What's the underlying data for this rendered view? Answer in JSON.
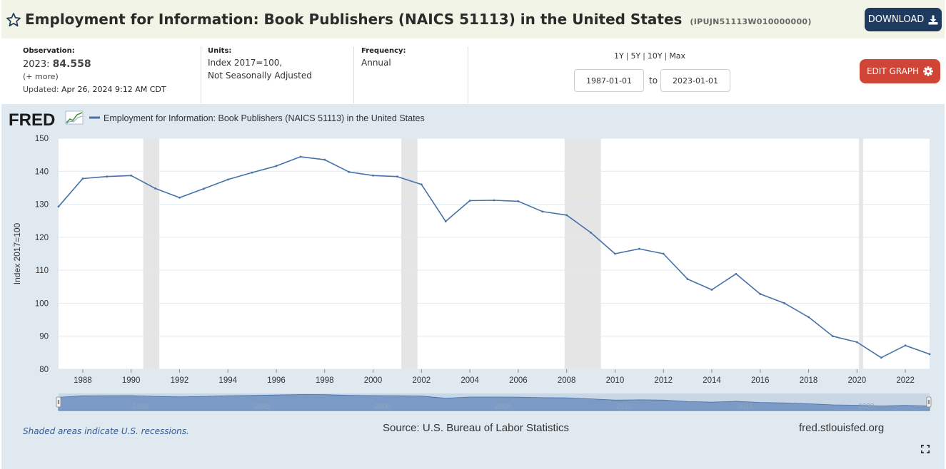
{
  "header": {
    "title": "Employment for Information: Book Publishers (NAICS 51113) in the United States",
    "series_code": "(IPUJN51113W010000000)",
    "download_label": "DOWNLOAD"
  },
  "meta": {
    "observation_label": "Observation:",
    "observation_period": "2023:",
    "observation_value": "84.558",
    "more_link": "(+ more)",
    "updated_label": "Updated:",
    "updated_value": "Apr 26, 2024 9:12 AM CDT",
    "units_label": "Units:",
    "units_line1": "Index 2017=100,",
    "units_line2": "Not Seasonally Adjusted",
    "frequency_label": "Frequency:",
    "frequency_value": "Annual"
  },
  "range": {
    "links": [
      "1Y",
      "5Y",
      "10Y",
      "Max"
    ],
    "start_date": "1987-01-01",
    "to_label": "to",
    "end_date": "2023-01-01"
  },
  "edit_graph_label": "EDIT GRAPH",
  "chart": {
    "logo_text": "FRED",
    "legend_label": "Employment for Information: Book Publishers (NAICS 51113) in the United States",
    "recession_note": "Shaded areas indicate U.S. recessions.",
    "source": "Source: U.S. Bureau of Labor Statistics",
    "site": "fred.stlouisfed.org",
    "colors": {
      "line": "#4572a7",
      "panel": "#e1e9f0",
      "recession": "#e5e5e5",
      "navigator_fill": "#7b9bc6"
    }
  },
  "chart_data": {
    "type": "line",
    "title": "",
    "xlabel": "",
    "ylabel": "Index 2017=100",
    "ylim": [
      80,
      150
    ],
    "xlim": [
      "1987-01-01",
      "2023-01-01"
    ],
    "y_ticks": [
      80,
      90,
      100,
      110,
      120,
      130,
      140,
      150
    ],
    "x_ticks": [
      "1988",
      "1990",
      "1992",
      "1994",
      "1996",
      "1998",
      "2000",
      "2002",
      "2004",
      "2006",
      "2008",
      "2010",
      "2012",
      "2014",
      "2016",
      "2018",
      "2020",
      "2022"
    ],
    "grid": true,
    "legend_position": "top-left",
    "recessions": [
      {
        "start": "1990-07-01",
        "end": "1991-03-01"
      },
      {
        "start": "2001-03-01",
        "end": "2001-11-01"
      },
      {
        "start": "2007-12-01",
        "end": "2009-06-01"
      },
      {
        "start": "2020-02-01",
        "end": "2020-04-01"
      }
    ],
    "navigator_labels": [
      "1990",
      "1995",
      "2000",
      "2005",
      "2010",
      "2015",
      "2020"
    ],
    "series": [
      {
        "name": "Employment for Information: Book Publishers (NAICS 51113) in the United States",
        "x": [
          "1987",
          "1988",
          "1989",
          "1990",
          "1991",
          "1992",
          "1993",
          "1994",
          "1995",
          "1996",
          "1997",
          "1998",
          "1999",
          "2000",
          "2001",
          "2002",
          "2003",
          "2004",
          "2005",
          "2006",
          "2007",
          "2008",
          "2009",
          "2010",
          "2011",
          "2012",
          "2013",
          "2014",
          "2015",
          "2016",
          "2017",
          "2018",
          "2019",
          "2020",
          "2021",
          "2022",
          "2023"
        ],
        "values": [
          129.3,
          137.8,
          138.4,
          138.7,
          134.8,
          132.0,
          134.7,
          137.5,
          139.6,
          141.6,
          144.4,
          143.5,
          139.8,
          138.7,
          138.4,
          136.0,
          124.8,
          131.1,
          131.2,
          130.9,
          127.8,
          126.7,
          121.4,
          115.0,
          116.5,
          115.0,
          107.3,
          104.1,
          108.9,
          102.8,
          100.0,
          95.8,
          90.0,
          88.2,
          83.5,
          87.2,
          84.558
        ]
      }
    ]
  }
}
